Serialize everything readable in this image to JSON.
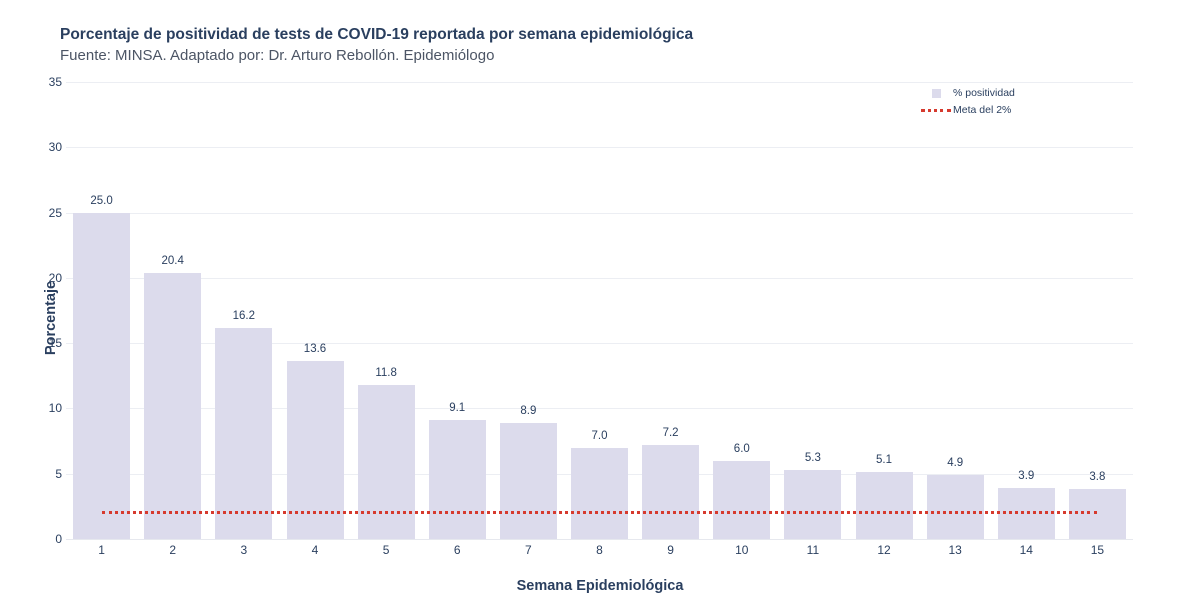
{
  "header": {
    "title": "Porcentaje de positividad de tests de COVID-19 reportada por semana epidemiológica",
    "subtitle": "Fuente: MINSA. Adaptado por: Dr. Arturo Rebollón. Epidemiólogo"
  },
  "legend": {
    "items": [
      {
        "label": "% positividad",
        "swatch": "bar-square",
        "color": "#dcdbec"
      },
      {
        "label": "Meta del 2%",
        "swatch": "dotted-line",
        "color": "#d63a2e"
      }
    ]
  },
  "chart_data": {
    "type": "bar",
    "title": "Porcentaje de positividad de tests de COVID-19 reportada por semana epidemiológica",
    "subtitle": "Fuente: MINSA. Adaptado por: Dr. Arturo Rebollón. Epidemiólogo",
    "categories": [
      "1",
      "2",
      "3",
      "4",
      "5",
      "6",
      "7",
      "8",
      "9",
      "10",
      "11",
      "12",
      "13",
      "14",
      "15"
    ],
    "values": [
      25.0,
      20.4,
      16.2,
      13.6,
      11.8,
      9.1,
      8.9,
      7.0,
      7.2,
      6.0,
      5.3,
      5.1,
      4.9,
      3.9,
      3.8
    ],
    "bar_labels": [
      "25.0",
      "20.4",
      "16.2",
      "13.6",
      "11.8",
      "9.1",
      "8.9",
      "7.0",
      "7.2",
      "6.0",
      "5.3",
      "5.1",
      "4.9",
      "3.9",
      "3.8"
    ],
    "series_name": "% positividad",
    "xlabel": "Semana Epidemiológica",
    "ylabel": "Porcentaje",
    "ylim": [
      0,
      35
    ],
    "yticks": [
      0,
      5,
      10,
      15,
      20,
      25,
      30,
      35
    ],
    "grid": true,
    "legend_position": "top-right",
    "bar_color": "#dcdbec",
    "text_color": "#2a3f5f",
    "target_line": {
      "value": 2,
      "label": "Meta del 2%",
      "style": "dotted",
      "color": "#d63a2e"
    }
  }
}
